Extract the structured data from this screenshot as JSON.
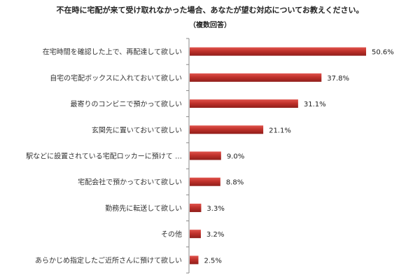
{
  "chart_data": {
    "type": "bar",
    "orientation": "horizontal",
    "title": "不在時に宅配が来て受け取れなかった場合、あなたが望む対応についてお教えください。",
    "subtitle": "（複数回答）",
    "categories": [
      "在宅時間を確認した上で、再配達して欲しい",
      "自宅の宅配ボックスに入れておいて欲しい",
      "最寄りのコンビニで預かって欲しい",
      "玄関先に置いておいて欲しい",
      "駅などに設置されている宅配ロッカーに預けて …",
      "宅配会社で預かっておいて欲しい",
      "勤務先に転送して欲しい",
      "その他",
      "あらかじめ指定したご近所さんに預けて欲しい"
    ],
    "values": [
      50.6,
      37.8,
      31.1,
      21.1,
      9.0,
      8.8,
      3.3,
      3.2,
      2.5
    ],
    "value_labels": [
      "50.6%",
      "37.8%",
      "31.1%",
      "21.1%",
      "9.0%",
      "8.8%",
      "3.3%",
      "3.2%",
      "2.5%"
    ],
    "xlim": [
      0,
      50.6
    ],
    "bar_color": "#c0312b",
    "bar_shadow_color": "#8f1e1a",
    "grid": false
  }
}
